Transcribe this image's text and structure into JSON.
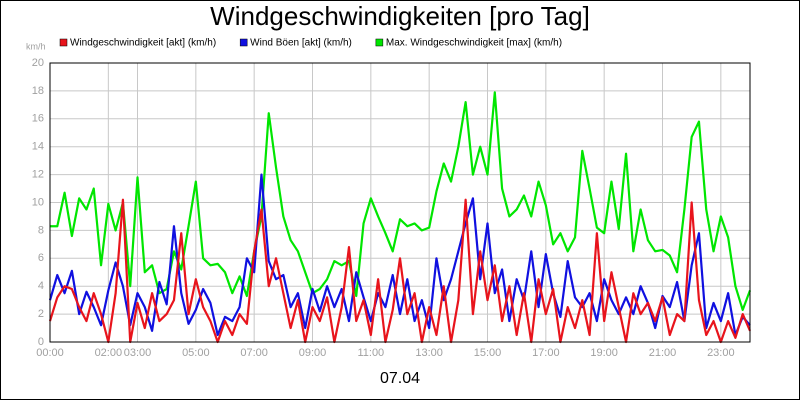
{
  "chart_data": {
    "type": "line",
    "title": "Windgeschwindigkeiten [pro Tag]",
    "y_unit": "km/h",
    "x_label": "07.04",
    "x": [
      0,
      0.25,
      0.5,
      0.75,
      1,
      1.25,
      1.5,
      1.75,
      2,
      2.25,
      2.5,
      2.75,
      3,
      3.25,
      3.5,
      3.75,
      4,
      4.25,
      4.5,
      4.75,
      5,
      5.25,
      5.5,
      5.75,
      6,
      6.25,
      6.5,
      6.75,
      7,
      7.25,
      7.5,
      7.75,
      8,
      8.25,
      8.5,
      8.75,
      9,
      9.25,
      9.5,
      9.75,
      10,
      10.25,
      10.5,
      10.75,
      11,
      11.25,
      11.5,
      11.75,
      12,
      12.25,
      12.5,
      12.75,
      13,
      13.25,
      13.5,
      13.75,
      14,
      14.25,
      14.5,
      14.75,
      15,
      15.25,
      15.5,
      15.75,
      16,
      16.25,
      16.5,
      16.75,
      17,
      17.25,
      17.5,
      17.75,
      18,
      18.25,
      18.5,
      18.75,
      19,
      19.25,
      19.5,
      19.75,
      20,
      20.25,
      20.5,
      20.75,
      21,
      21.25,
      21.5,
      21.75,
      22,
      22.25,
      22.5,
      22.75,
      23,
      23.25,
      23.5,
      23.75,
      24
    ],
    "series": [
      {
        "name": "Max. Windgeschwindigkeit [max] (km/h)",
        "color": "#00e600",
        "values": [
          8.3,
          8.3,
          10.7,
          7.6,
          10.3,
          9.5,
          11,
          5.5,
          9.9,
          8,
          10,
          4,
          11.8,
          5,
          5.5,
          3.5,
          3.8,
          6.5,
          5.2,
          8.3,
          11.5,
          6,
          5.5,
          5.6,
          5,
          3.5,
          4.7,
          3.3,
          6.5,
          9,
          16.4,
          12.5,
          9,
          7.3,
          6.5,
          5,
          3.5,
          3.8,
          4.5,
          5.8,
          5.5,
          5.8,
          3.3,
          8.5,
          10.3,
          9,
          7.8,
          6.5,
          8.8,
          8.3,
          8.5,
          8,
          8.2,
          10.8,
          12.8,
          11.5,
          14,
          17.2,
          12,
          14,
          12,
          17.9,
          11,
          9,
          9.5,
          10.5,
          9,
          11.5,
          9.8,
          7,
          7.8,
          6.5,
          7.5,
          13.7,
          11,
          8.2,
          7.8,
          11.5,
          8.1,
          13.5,
          6.5,
          9.5,
          7.3,
          6.5,
          6.6,
          6.2,
          5,
          9.5,
          14.7,
          15.8,
          9.5,
          6.5,
          9,
          7.5,
          4,
          2.3,
          3.7
        ]
      },
      {
        "name": "Wind Böen [akt] (km/h)",
        "color": "#1010e0",
        "values": [
          3,
          4.8,
          3.5,
          5.1,
          2,
          3.6,
          2.5,
          1.2,
          3.7,
          5.7,
          4,
          1.2,
          3.5,
          2.5,
          0.8,
          4.3,
          2.7,
          8.3,
          3.5,
          1.3,
          2.3,
          3.8,
          2.8,
          0.5,
          1.8,
          1.5,
          2.5,
          6,
          5,
          12,
          5.8,
          4.5,
          4.8,
          2.5,
          3.5,
          1,
          3.8,
          2.2,
          4,
          2.5,
          3.8,
          1.5,
          5,
          3.2,
          1.5,
          3.5,
          2.5,
          4.8,
          2,
          4.5,
          1.5,
          3,
          1,
          6,
          3,
          4.5,
          6.5,
          8.5,
          10.3,
          4.5,
          8.5,
          3.5,
          5.2,
          1.5,
          4.5,
          3,
          6.5,
          2.5,
          6.3,
          3.5,
          1.8,
          5.8,
          3.2,
          2.5,
          3.5,
          1.5,
          4.5,
          3,
          2,
          3.2,
          2,
          4,
          2.8,
          1,
          3.3,
          2.5,
          4.3,
          1.5,
          5.5,
          7.8,
          1,
          2.8,
          1.5,
          3.5,
          0.5,
          1.8,
          1.2
        ]
      },
      {
        "name": "Windgeschwindigkeit [akt] (km/h)",
        "color": "#e8141c",
        "values": [
          1.5,
          3.2,
          4,
          3.8,
          2.5,
          1.5,
          3.5,
          2,
          0,
          3.5,
          10.2,
          0,
          2.8,
          1,
          3.5,
          1.5,
          2,
          3,
          7.8,
          2,
          4.5,
          2.5,
          1.5,
          0,
          1.5,
          0.5,
          2,
          1.3,
          6.5,
          9.5,
          4,
          6,
          3.5,
          1,
          3,
          0,
          2.5,
          1.5,
          3.2,
          0,
          2.5,
          6.8,
          1.5,
          3,
          0.5,
          4.5,
          0,
          2.3,
          6,
          2,
          3.5,
          0,
          2.5,
          0.5,
          4,
          0,
          3,
          10.2,
          2,
          6.5,
          3,
          5.5,
          1.5,
          4,
          0.5,
          3.5,
          0,
          4.5,
          2,
          3.8,
          0,
          2.5,
          1,
          3,
          0.5,
          7.8,
          1.5,
          5,
          2.5,
          0,
          3.5,
          2,
          2.8,
          1.5,
          3.2,
          0.5,
          2,
          1.5,
          10,
          3,
          0.5,
          1.5,
          0,
          1.5,
          0.3,
          2,
          0.8
        ]
      }
    ],
    "legend_order": [
      2,
      1,
      0
    ],
    "xlim": [
      0,
      24
    ],
    "xticks": [
      {
        "value": 0,
        "label": "00:00"
      },
      {
        "value": 2,
        "label": "02:00"
      },
      {
        "value": 3,
        "label": "03:00"
      },
      {
        "value": 5,
        "label": "05:00"
      },
      {
        "value": 7,
        "label": "07:00"
      },
      {
        "value": 9,
        "label": "09:00"
      },
      {
        "value": 11,
        "label": "11:00"
      },
      {
        "value": 13,
        "label": "13:00"
      },
      {
        "value": 15,
        "label": "15:00"
      },
      {
        "value": 17,
        "label": "17:00"
      },
      {
        "value": 19,
        "label": "19:00"
      },
      {
        "value": 21,
        "label": "21:00"
      },
      {
        "value": 23,
        "label": "23:00"
      }
    ],
    "ylim": [
      0,
      20
    ],
    "yticks": [
      0,
      2,
      4,
      6,
      8,
      10,
      12,
      14,
      16,
      18,
      20
    ],
    "grid": true
  }
}
